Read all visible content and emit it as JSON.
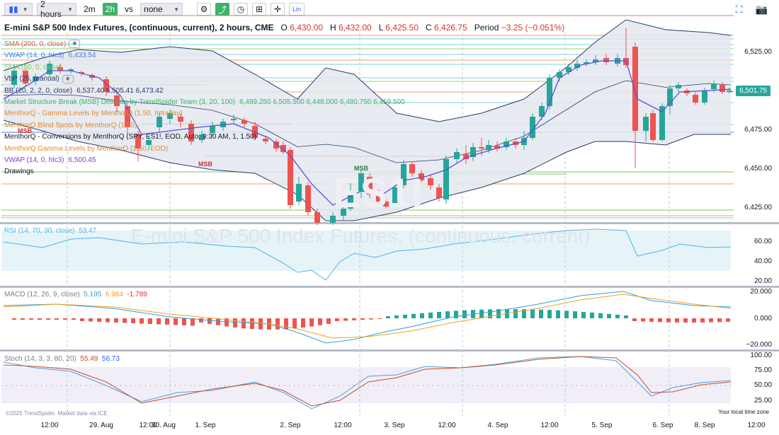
{
  "toolbar": {
    "timeframe": "2 hours",
    "interval_2m": "2m",
    "interval_2h": "2h",
    "vs": "vs",
    "compare": "none",
    "lin": "Lin"
  },
  "title": {
    "name": "E-mini S&P 500 Index Futures, (continuous, current), 2 hours, CME",
    "o_lbl": "O",
    "o": "6,430.00",
    "h_lbl": "H",
    "h": "6,432.00",
    "l_lbl": "L",
    "l": "6,425.50",
    "c_lbl": "C",
    "c": "6,426.75",
    "period_lbl": "Period",
    "period": "−3.25 (−0.051%)"
  },
  "indicators": [
    {
      "label": "SMA (200, 0, close)",
      "values": "",
      "color": "#e0602c"
    },
    {
      "label": "VWAP (14, 0, hlc3)",
      "values": "6,433.54",
      "color": "#4a7fe0"
    },
    {
      "label": "SMA (50, 0, close)",
      "values": "",
      "color": "#7ec850"
    },
    {
      "label": "VbP (25, manual)",
      "values": "",
      "color": "#2b3a6e"
    },
    {
      "label": "BB (20, 2, 2, 0, close)",
      "values": "6,537.40  6,505.41  6,473.42",
      "color": "#2b3a6e"
    },
    {
      "label": "Market Structure Break (MSB) Detector by TrendSpider Team (3, 20, 100)",
      "values": "6,489.250  6,505.500  6,448.000  6,480.750  6,459.500",
      "color": "#3bb36a"
    },
    {
      "label": "MenthorQ - Gamma Levels by MenthorQ (1.50, Intraday)",
      "values": "",
      "color": "#e08a2c"
    },
    {
      "label": "MenthorQ Blind Spots by MenthorQ (1.50)",
      "values": "",
      "color": "#e08a2c"
    },
    {
      "label": "MenthorQ - Conversions by MenthorQ (SPY, ES1!, EOD, Auto, 9:30 AM, 1, 1.50)",
      "values": "",
      "color": "#131722"
    },
    {
      "label": "MenthorQ Gamma Levels by MenthorQ (1.50, EOD)",
      "values": "",
      "color": "#e08a2c"
    },
    {
      "label": "VWAP (14, 0, hlc3)",
      "values": "6,500.45",
      "color": "#7b3fd6"
    },
    {
      "label": "Drawings",
      "values": "",
      "color": "#131722"
    }
  ],
  "msb_labels": [
    "MSB",
    "MSB",
    "MSB"
  ],
  "price_axis": [
    "6,525.00",
    "6,475.00",
    "6,450.00",
    "6,425.00"
  ],
  "last_price": "6,501.75",
  "rsi": {
    "label": "RSI (14, 70, 30, close)",
    "value": "53.47",
    "axis": [
      "60.00",
      "40.00",
      "20.00"
    ]
  },
  "macd": {
    "label": "MACD (12, 26, 9, close)",
    "v1": "5.195",
    "v2": "6.984",
    "v3": "-1.789",
    "axis": [
      "20.000",
      "0.000",
      "−20.000"
    ]
  },
  "stoch": {
    "label": "Stoch (14, 3, 3, 80, 20)",
    "v1": "55.49",
    "v2": "56.73",
    "axis": [
      "100.00",
      "75.00",
      "50.00",
      "25.00"
    ]
  },
  "x_axis": [
    "12:00",
    "29. Aug",
    "12:00",
    "30. Aug",
    "1. Sep",
    "2. Sep",
    "12:00",
    "3. Sep",
    "12:00",
    "4. Sep",
    "12:00",
    "5. Sep",
    "6. Sep",
    "8. Sep",
    "12:00"
  ],
  "footer": "©2025 TrendSpider. Market data via ICE",
  "tz_note": "Your local time zone",
  "watermark": "E-mini S&P 500 Index Futures, (continuous, current)",
  "watermark_symbol": "ES1!",
  "colors": {
    "up": "#26a69a",
    "down": "#ef5350",
    "bb": "#2b3a6e",
    "vwap": "#5b4fd6",
    "rsi": "#4db3e6",
    "macd": "#2aa1e0",
    "signal": "#f0a020",
    "stoch_k": "#4a9fe0",
    "stoch_d": "#c0502c"
  }
}
